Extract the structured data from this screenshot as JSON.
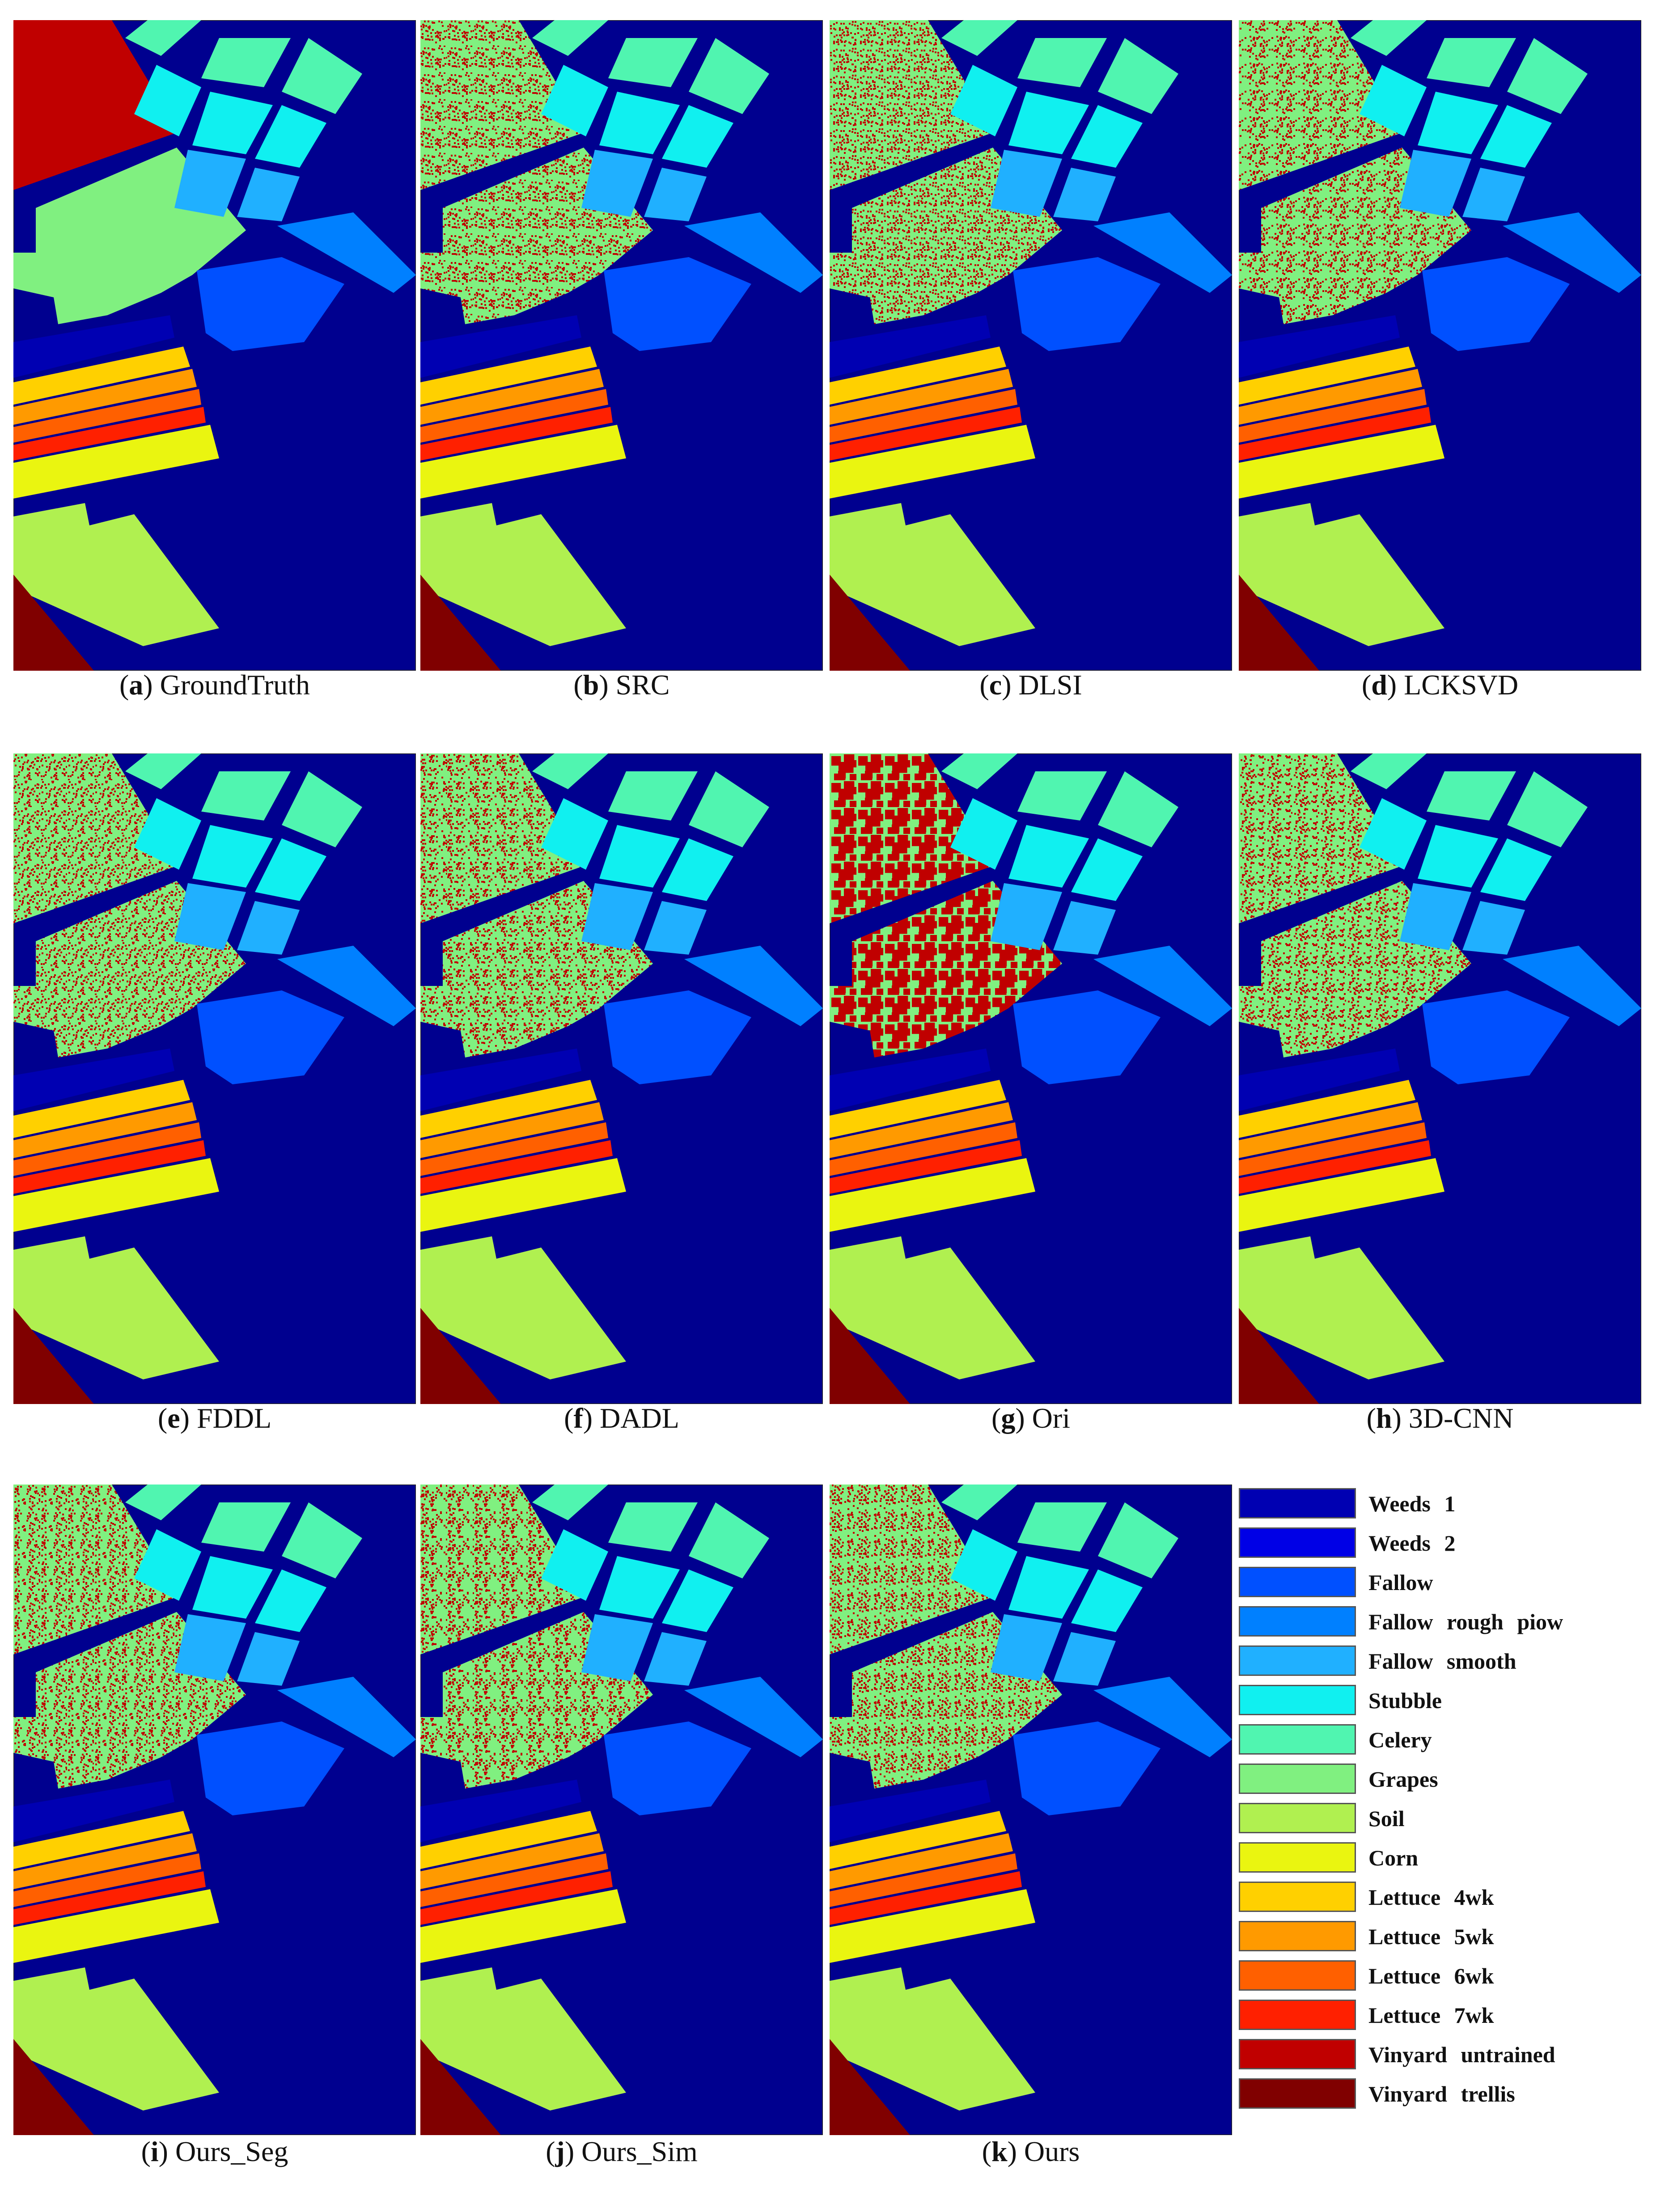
{
  "colors": {
    "background": "#00008F",
    "Weeds 1": "#0000B2",
    "Weeds 2": "#0000E6",
    "Fallow": "#0050FF",
    "Fallow rough piow": "#0080FF",
    "Fallow smooth": "#20B0FF",
    "Stubble": "#10F0F0",
    "Celery": "#50F5B0",
    "Grapes": "#80F080",
    "Soil": "#B0F050",
    "Corn": "#EAF510",
    "Lettuce 4wk": "#FFD000",
    "Lettuce 5wk": "#FF9A00",
    "Lettuce 6wk": "#FF6000",
    "Lettuce 7wk": "#FF2000",
    "Vinyard untrained": "#C00000",
    "Vinyard trellis": "#800000"
  },
  "panels": [
    {
      "letter": "a",
      "name": "GroundTruth",
      "noise": 0
    },
    {
      "letter": "b",
      "name": "SRC",
      "noise": 2
    },
    {
      "letter": "c",
      "name": "DLSI",
      "noise": 1
    },
    {
      "letter": "d",
      "name": "LCKSVD",
      "noise": 1
    },
    {
      "letter": "e",
      "name": "FDDL",
      "noise": 1
    },
    {
      "letter": "f",
      "name": "DADL",
      "noise": 1
    },
    {
      "letter": "g",
      "name": "Ori",
      "noise": 3
    },
    {
      "letter": "h",
      "name": "3D-CNN",
      "noise": 1
    },
    {
      "letter": "i",
      "name": "Ours_Seg",
      "noise": 1
    },
    {
      "letter": "j",
      "name": "Ours_Sim",
      "noise": 1
    },
    {
      "letter": "k",
      "name": "Ours",
      "noise": 1
    }
  ],
  "legend": [
    "Weeds 1",
    "Weeds 2",
    "Fallow",
    "Fallow rough piow",
    "Fallow smooth",
    "Stubble",
    "Celery",
    "Grapes",
    "Soil",
    "Corn",
    "Lettuce 4wk",
    "Lettuce 5wk",
    "Lettuce 6wk",
    "Lettuce 7wk",
    "Vinyard untrained",
    "Vinyard trellis"
  ]
}
